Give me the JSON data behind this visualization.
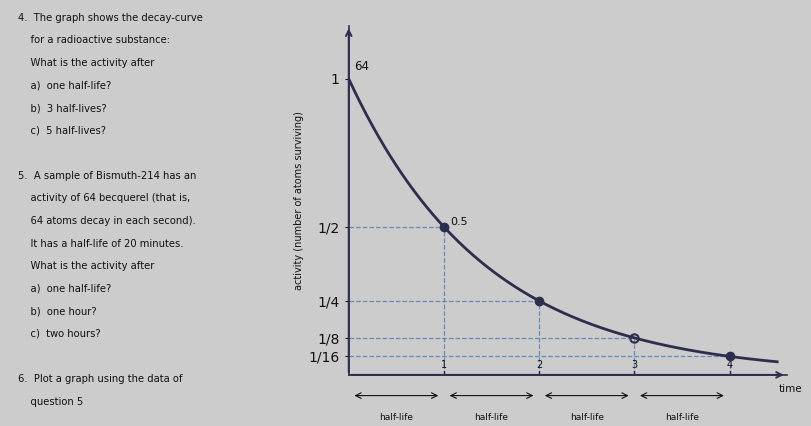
{
  "ylabel": "activity (number of atoms surviving)",
  "xlabel": "time",
  "x_halflife_labels": [
    "half-life",
    "half-life",
    "half-life",
    "half-life"
  ],
  "y_ticks": [
    0.0625,
    0.125,
    0.25,
    0.5,
    1.0
  ],
  "y_tick_labels": [
    "1/16",
    "1/8",
    "1/4",
    "1/2",
    "1"
  ],
  "marked_points_x": [
    1,
    2,
    3,
    4
  ],
  "marked_points_y": [
    0.5,
    0.25,
    0.125,
    0.0625
  ],
  "filled_markers": [
    1,
    2,
    4
  ],
  "open_markers": [
    3
  ],
  "annotation_64": "64",
  "annotation_05": "0.5",
  "curve_color": "#2d2d4e",
  "dashed_color": "#6688bb",
  "marker_fill_color": "#2d2d4e",
  "background_color": "#cccccc",
  "text_color": "#111111",
  "xlim": [
    0,
    4.6
  ],
  "ylim": [
    0,
    1.18
  ],
  "left_text_lines": [
    "4.  The graph shows the decay-curve",
    "    for a radioactive substance:",
    "    What is the activity after",
    "    a)  one half-life?",
    "    b)  3 half-lives?",
    "    c)  5 half-lives?",
    "",
    "5.  A sample of Bismuth-214 has an",
    "    activity of 64 becquerel (that is,",
    "    64 atoms decay in each second).",
    "    It has a half-life of 20 minutes.",
    "    What is the activity after",
    "    a)  one half-life?",
    "    b)  one hour?",
    "    c)  two hours?",
    "",
    "6.  Plot a graph using the data of",
    "    question 5"
  ]
}
